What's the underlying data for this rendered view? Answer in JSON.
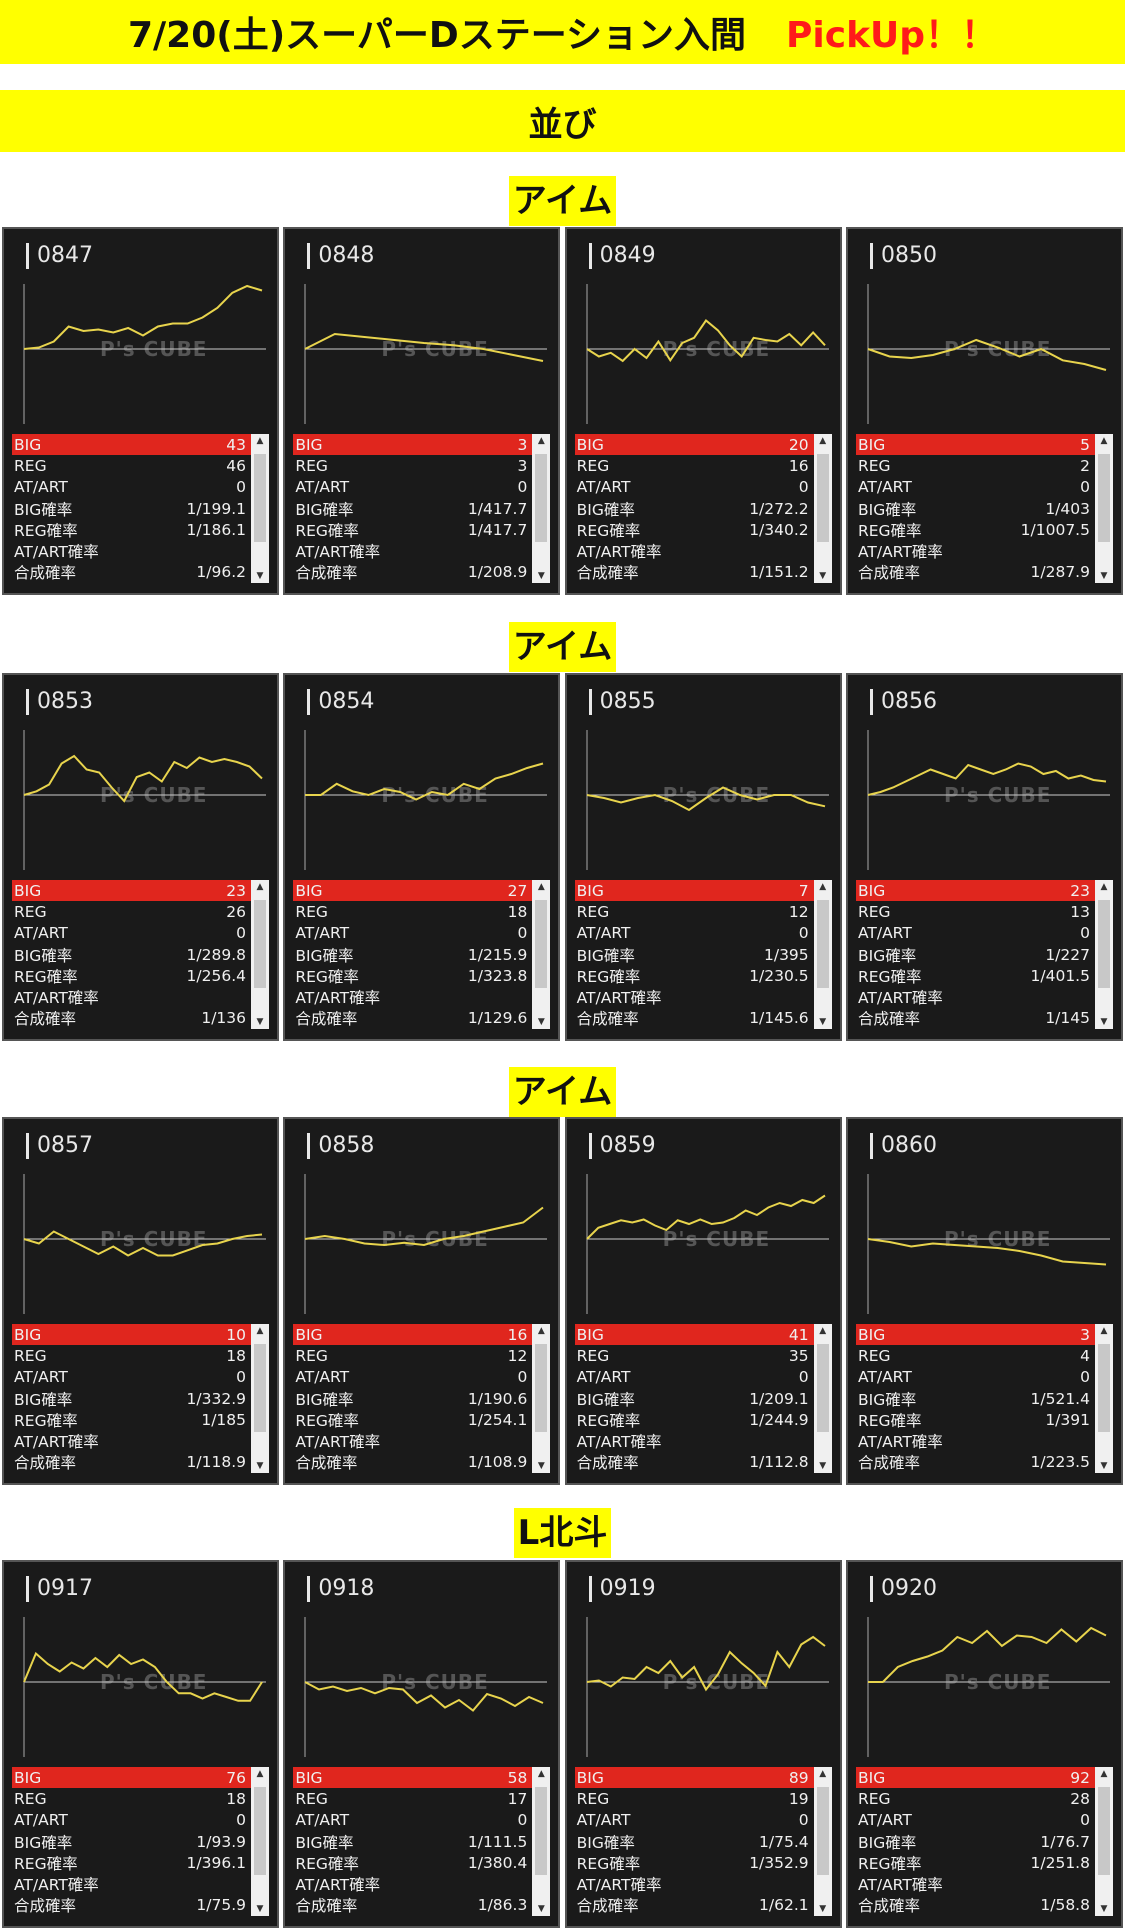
{
  "header": {
    "title": "7/20(土)スーパーDステーション入間",
    "pickup": "PickUp！！"
  },
  "subheader": "並び",
  "stat_labels": [
    "BIG",
    "REG",
    "AT/ART",
    "BIG確率",
    "REG確率",
    "AT/ART確率",
    "合成確率"
  ],
  "watermark": "P's CUBE",
  "sections": [
    {
      "label": "アイム",
      "machines": [
        {
          "num": "0847",
          "stats": [
            "43",
            "46",
            "0",
            "1/199.1",
            "1/186.1",
            "",
            "1/96.2"
          ],
          "graph": [
            0,
            2,
            10,
            30,
            24,
            26,
            22,
            28,
            18,
            30,
            34,
            34,
            42,
            55,
            75,
            84,
            78
          ]
        },
        {
          "num": "0848",
          "stats": [
            "3",
            "3",
            "0",
            "1/417.7",
            "1/417.7",
            "",
            "1/208.9"
          ],
          "graph": [
            0,
            20,
            16,
            12,
            8,
            5,
            0,
            -8,
            -16
          ]
        },
        {
          "num": "0849",
          "stats": [
            "20",
            "16",
            "0",
            "1/272.2",
            "1/340.2",
            "",
            "1/151.2"
          ],
          "graph": [
            0,
            -10,
            -5,
            -16,
            0,
            -12,
            10,
            -15,
            8,
            15,
            38,
            25,
            5,
            -10,
            15,
            12,
            10,
            20,
            5,
            22,
            5
          ]
        },
        {
          "num": "0850",
          "stats": [
            "5",
            "2",
            "0",
            "1/403",
            "1/1007.5",
            "",
            "1/287.9"
          ],
          "graph": [
            0,
            -10,
            -12,
            -8,
            0,
            12,
            2,
            -10,
            0,
            -15,
            -20,
            -28
          ]
        }
      ]
    },
    {
      "label": "アイム",
      "machines": [
        {
          "num": "0853",
          "stats": [
            "23",
            "26",
            "0",
            "1/289.8",
            "1/256.4",
            "",
            "1/136"
          ],
          "graph": [
            0,
            5,
            14,
            42,
            52,
            34,
            30,
            10,
            -8,
            24,
            30,
            18,
            44,
            36,
            50,
            44,
            48,
            44,
            38,
            22
          ]
        },
        {
          "num": "0854",
          "stats": [
            "27",
            "18",
            "0",
            "1/215.9",
            "1/323.8",
            "",
            "1/129.6"
          ],
          "graph": [
            0,
            0,
            15,
            5,
            0,
            8,
            4,
            -6,
            4,
            0,
            15,
            8,
            22,
            28,
            36,
            42
          ]
        },
        {
          "num": "0855",
          "stats": [
            "7",
            "12",
            "0",
            "1/395",
            "1/230.5",
            "",
            "1/145.6"
          ],
          "graph": [
            0,
            -4,
            -10,
            -4,
            0,
            -8,
            -20,
            -4,
            10,
            0,
            -6,
            0,
            0,
            -10,
            -15
          ]
        },
        {
          "num": "0856",
          "stats": [
            "23",
            "13",
            "0",
            "1/227",
            "1/401.5",
            "",
            "1/145"
          ],
          "graph": [
            0,
            4,
            10,
            18,
            26,
            34,
            28,
            22,
            40,
            34,
            28,
            34,
            42,
            38,
            28,
            32,
            22,
            26,
            20,
            18
          ]
        }
      ]
    },
    {
      "label": "アイム",
      "machines": [
        {
          "num": "0857",
          "stats": [
            "10",
            "18",
            "0",
            "1/332.9",
            "1/185",
            "",
            "1/118.9"
          ],
          "graph": [
            0,
            -6,
            10,
            0,
            -10,
            -20,
            -10,
            -22,
            -12,
            -22,
            -22,
            -15,
            -8,
            -6,
            0,
            4,
            6
          ]
        },
        {
          "num": "0858",
          "stats": [
            "16",
            "12",
            "0",
            "1/190.6",
            "1/254.1",
            "",
            "1/108.9"
          ],
          "graph": [
            0,
            4,
            0,
            -6,
            -8,
            -5,
            -8,
            0,
            4,
            10,
            16,
            22,
            42
          ]
        },
        {
          "num": "0859",
          "stats": [
            "41",
            "35",
            "0",
            "1/209.1",
            "1/244.9",
            "",
            "1/112.8"
          ],
          "graph": [
            0,
            15,
            20,
            25,
            22,
            26,
            18,
            12,
            25,
            20,
            26,
            20,
            22,
            28,
            38,
            32,
            42,
            48,
            44,
            52,
            48,
            58
          ]
        },
        {
          "num": "0860",
          "stats": [
            "3",
            "4",
            "0",
            "1/521.4",
            "1/391",
            "",
            "1/223.5"
          ],
          "graph": [
            0,
            -4,
            -10,
            -6,
            -8,
            -10,
            -12,
            -16,
            -22,
            -30,
            -32,
            -34
          ]
        }
      ]
    },
    {
      "label": "L北斗",
      "machines": [
        {
          "num": "0917",
          "stats": [
            "76",
            "18",
            "0",
            "1/93.9",
            "1/396.1",
            "",
            "1/75.9"
          ],
          "graph": [
            0,
            38,
            24,
            14,
            26,
            18,
            32,
            20,
            36,
            24,
            30,
            20,
            0,
            -15,
            -15,
            -22,
            -15,
            -20,
            -25,
            -25,
            0
          ]
        },
        {
          "num": "0918",
          "stats": [
            "58",
            "17",
            "0",
            "1/111.5",
            "1/380.4",
            "",
            "1/86.3"
          ],
          "graph": [
            0,
            -10,
            -6,
            -12,
            -8,
            -15,
            -8,
            -10,
            -28,
            -18,
            -34,
            -24,
            -38,
            -16,
            -22,
            -32,
            -20,
            -28
          ]
        },
        {
          "num": "0919",
          "stats": [
            "89",
            "19",
            "0",
            "1/75.4",
            "1/352.9",
            "",
            "1/62.1"
          ],
          "graph": [
            0,
            2,
            -6,
            6,
            4,
            20,
            12,
            28,
            6,
            20,
            -10,
            10,
            40,
            25,
            12,
            -5,
            40,
            20,
            50,
            60,
            48
          ]
        },
        {
          "num": "0920",
          "stats": [
            "92",
            "28",
            "0",
            "1/76.7",
            "1/251.8",
            "",
            "1/58.8"
          ],
          "graph": [
            0,
            0,
            20,
            28,
            34,
            42,
            60,
            52,
            68,
            48,
            62,
            60,
            52,
            70,
            54,
            72,
            62
          ]
        }
      ]
    }
  ]
}
